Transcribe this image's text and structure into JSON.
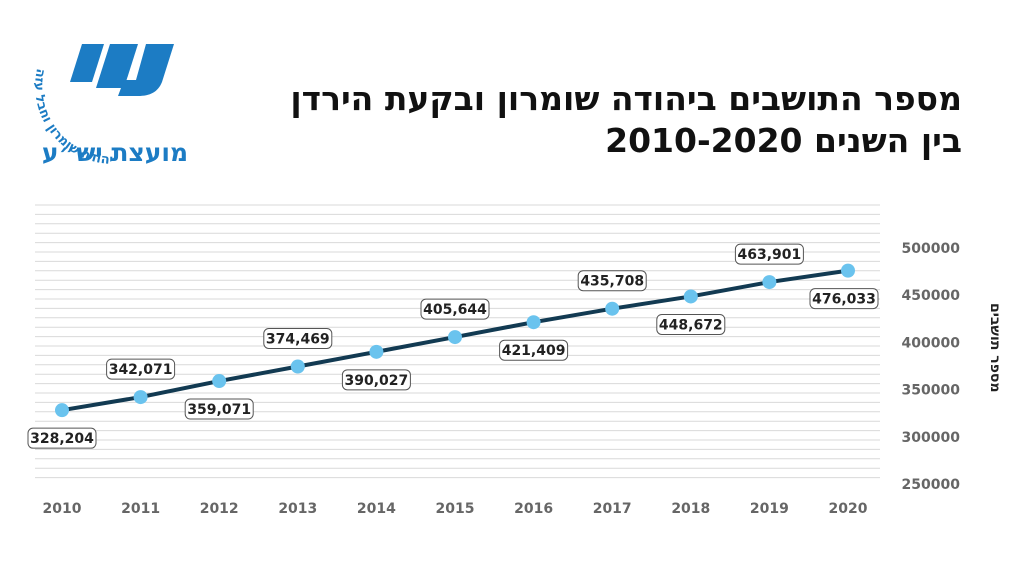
{
  "logo": {
    "arc_text": "יהודה שומרון וחבל עזה",
    "name": "מועצת יש״ע",
    "colors": {
      "primary": "#1c7cc4",
      "light": "#4fa8e0"
    }
  },
  "title": {
    "line1": "מספר התושבים ביהודה שומרון ובקעת הירדן",
    "line2": "בין השנים 2010-2020"
  },
  "chart_data": {
    "type": "line",
    "x": [
      2010,
      2011,
      2012,
      2013,
      2014,
      2015,
      2016,
      2017,
      2018,
      2019,
      2020
    ],
    "series": [
      {
        "values": [
          328204,
          342071,
          359071,
          374469,
          390027,
          405644,
          421409,
          435708,
          448672,
          463901,
          476033
        ],
        "labels": [
          "328,204",
          "342,071",
          "359,071",
          "374,469",
          "390,027",
          "405,644",
          "421,409",
          "435,708",
          "448,672",
          "463,901",
          "476,033"
        ]
      }
    ],
    "ylabel": "מספר תושבים",
    "yticks": [
      "500000",
      "450000",
      "400000",
      "350000",
      "300000",
      "250000"
    ],
    "ytick_values": [
      500000,
      450000,
      400000,
      350000,
      300000,
      250000
    ],
    "ylim": [
      250000,
      500000
    ],
    "xlim": [
      2010,
      2020
    ],
    "grid": true,
    "yaxis_side": "right",
    "colors": {
      "line": "#123a52",
      "marker": "#6ac3ee",
      "grid": "#d9d9d9",
      "axis_text": "#666666"
    }
  }
}
